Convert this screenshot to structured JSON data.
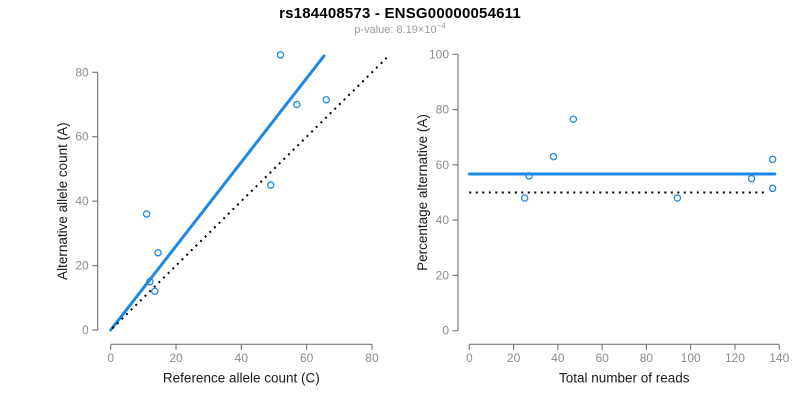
{
  "header": {
    "title": "rs184408573 - ENSG00000054611",
    "subtitle_prefix": "p-value: ",
    "subtitle_mantissa": "8.19×10",
    "subtitle_exponent": "−4"
  },
  "colors": {
    "accent_blue": "#1E88E5",
    "line_black": "#000000",
    "axis_gray": "#7d7d7d",
    "tick_label_gray": "#8c8c8c",
    "axis_title_black": "#1a1a1a",
    "subtitle_gray": "#9b9b9b"
  },
  "chart_data": [
    {
      "type": "scatter",
      "panel": "left",
      "xlabel": "Reference allele count (C)",
      "ylabel": "Alternative allele count (A)",
      "xticks": [
        0,
        20,
        40,
        60,
        80
      ],
      "yticks": [
        0,
        20,
        40,
        60,
        80
      ],
      "xlim": [
        0,
        85
      ],
      "ylim": [
        0,
        86
      ],
      "grid": false,
      "points": [
        [
          11,
          36
        ],
        [
          12,
          15
        ],
        [
          13.5,
          12
        ],
        [
          14.5,
          24
        ],
        [
          49,
          45
        ],
        [
          52,
          85.4
        ],
        [
          57,
          70
        ],
        [
          66,
          71.5
        ]
      ],
      "lines": [
        {
          "name": "regression-line",
          "x1": 0,
          "y1": 0,
          "x2": 65.3,
          "y2": 85.1,
          "style": "solid",
          "color": "#1E88E5"
        },
        {
          "name": "identity-line",
          "x1": 0.5,
          "y1": 0.5,
          "x2": 84.5,
          "y2": 84.5,
          "style": "dotted",
          "color": "#000000"
        }
      ]
    },
    {
      "type": "scatter",
      "panel": "right",
      "xlabel": "Total number of reads",
      "ylabel": "Percentage alternative (A)",
      "xticks": [
        0,
        20,
        40,
        60,
        80,
        100,
        120,
        140
      ],
      "yticks": [
        0,
        20,
        40,
        60,
        80,
        100
      ],
      "xlim": [
        0,
        140
      ],
      "ylim": [
        0,
        100
      ],
      "grid": false,
      "points": [
        [
          25,
          48
        ],
        [
          27,
          56
        ],
        [
          38,
          63
        ],
        [
          47,
          76.5
        ],
        [
          94,
          48
        ],
        [
          127.5,
          55
        ],
        [
          137,
          62
        ],
        [
          137,
          51.5
        ]
      ],
      "lines": [
        {
          "name": "mean-line",
          "x1": 0,
          "y1": 56.7,
          "x2": 138,
          "y2": 56.7,
          "style": "solid",
          "color": "#1E88E5"
        },
        {
          "name": "null-line",
          "x1": 0,
          "y1": 50,
          "x2": 135,
          "y2": 50,
          "style": "dotted",
          "color": "#000000"
        }
      ]
    }
  ]
}
